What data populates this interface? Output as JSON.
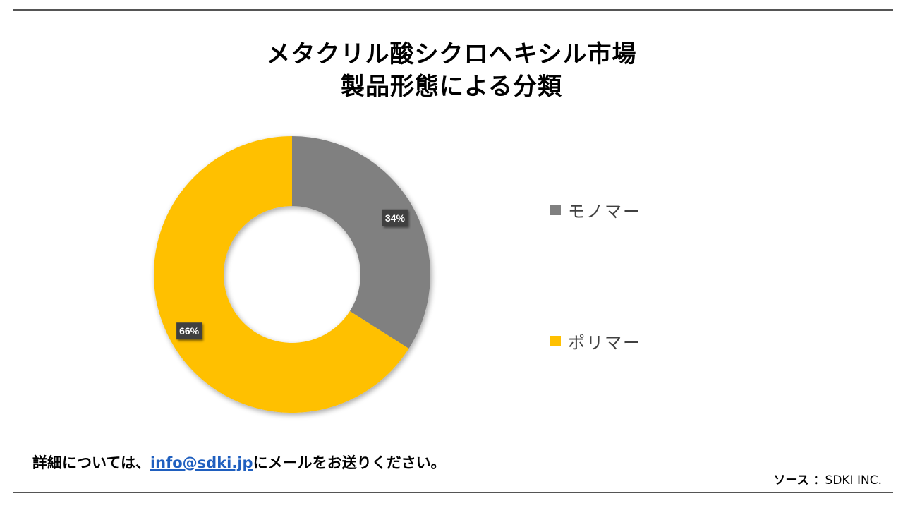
{
  "title_line1": "メタクリル酸シクロヘキシル市場",
  "title_line2": "製品形態による分類",
  "chart_data": {
    "type": "pie",
    "donut": true,
    "categories": [
      "モノマー",
      "ポリマー"
    ],
    "values": [
      34,
      66
    ],
    "data_labels": [
      "34%",
      "66%"
    ],
    "colors": [
      "#808080",
      "#FFC000"
    ],
    "legend_position": "right"
  },
  "footer": {
    "prefix": "詳細については、",
    "email": "info@sdki.jp",
    "suffix": "にメールをお送りください。"
  },
  "source": {
    "label": "ソース ：",
    "value": "SDKI INC."
  }
}
